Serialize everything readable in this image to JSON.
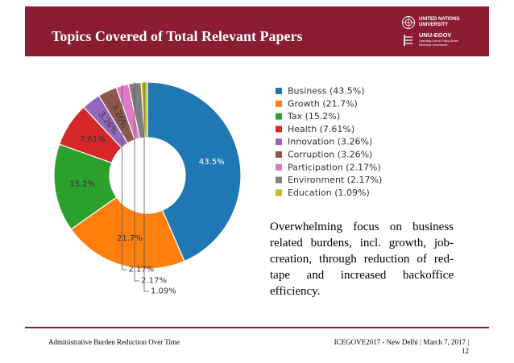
{
  "header": {
    "title": "Topics Covered of Total Relevant Papers",
    "logo": {
      "line1": "UNITED NATIONS",
      "line2": "UNIVERSITY",
      "line3": "UNU-EGOV",
      "line4": "Operating Unit on Policy-Driven",
      "line5": "Electronic Governance"
    }
  },
  "chart_data": {
    "type": "pie",
    "donut": true,
    "title": "",
    "legend_position": "right",
    "series": [
      {
        "name": "Business (43.5%)",
        "value": 43.5,
        "label": "43.5%",
        "color": "#1f77b4"
      },
      {
        "name": "Growth (21.7%)",
        "value": 21.7,
        "label": "21.7%",
        "color": "#ff7f0e"
      },
      {
        "name": "Tax (15.2%)",
        "value": 15.2,
        "label": "15.2%",
        "color": "#2ca02c"
      },
      {
        "name": "Health (7.61%)",
        "value": 7.61,
        "label": "7.61%",
        "color": "#d62728"
      },
      {
        "name": "Innovation (3.26%)",
        "value": 3.26,
        "label": "3.26%",
        "color": "#9467bd"
      },
      {
        "name": "Corruption (3.26%)",
        "value": 3.26,
        "label": "3.26%",
        "color": "#8c564b"
      },
      {
        "name": "Participation (2.17%)",
        "value": 2.17,
        "label": "2.17%",
        "color": "#e377c2"
      },
      {
        "name": "Environment (2.17%)",
        "value": 2.17,
        "label": "2.17%",
        "color": "#7f7f7f"
      },
      {
        "name": "Education (1.09%)",
        "value": 1.09,
        "label": "1.09%",
        "color": "#bcbd22"
      }
    ]
  },
  "caption": "Overwhelming focus on business related burdens, incl. growth, job-creation, through reduction of red-tape and increased backoffice efficiency.",
  "footer": {
    "left": "Administrative Burden Reduction Over Time",
    "right_line1": "ICEGOVE2017 - New Delhi | March 7, 2017 |",
    "right_line2": "12"
  }
}
